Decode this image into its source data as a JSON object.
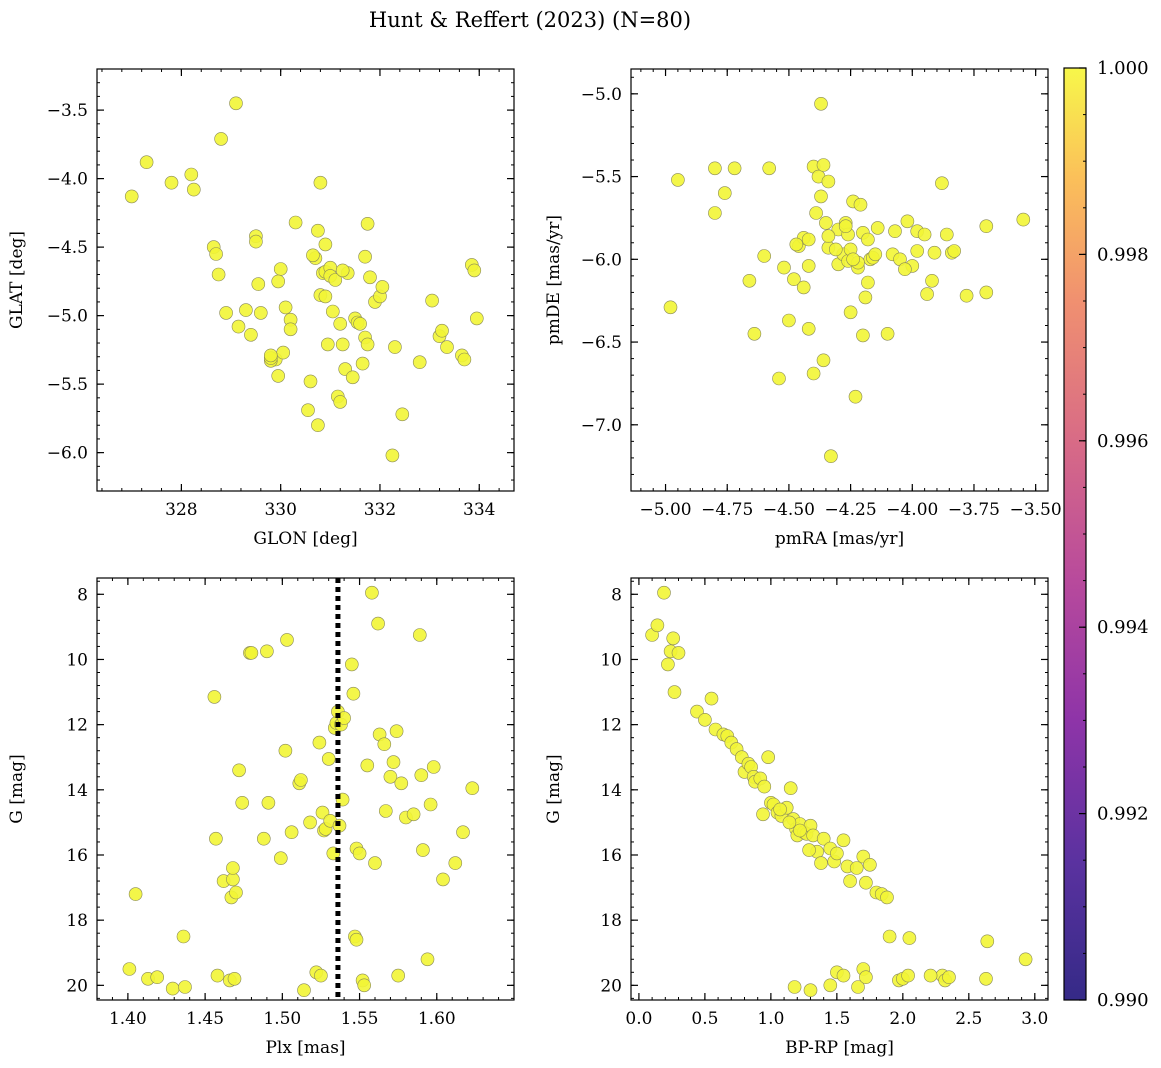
{
  "figure": {
    "title": "Hunt & Reffert (2023) (N=80)"
  },
  "colors": {
    "point_fill": "#f2f535",
    "point_edge": "#8a8a5a",
    "vline": "#000000"
  },
  "chart_data": [
    {
      "type": "scatter",
      "id": "glon-glat",
      "xlabel": "GLON [deg]",
      "ylabel": "GLAT [deg]",
      "xlim": [
        326.3,
        334.7
      ],
      "ylim": [
        -6.28,
        -3.2
      ],
      "y_inverted": false,
      "xticks": [
        328,
        330,
        332,
        334
      ],
      "xtick_labels": [
        "328",
        "330",
        "332",
        "334"
      ],
      "yticks": [
        -3.5,
        -4.0,
        -4.5,
        -5.0,
        -5.5,
        -6.0
      ],
      "ytick_labels": [
        "−3.5",
        "−4.0",
        "−4.5",
        "−5.0",
        "−5.5",
        "−6.0"
      ],
      "x": [
        327.0,
        327.3,
        327.8,
        328.2,
        328.25,
        329.1,
        328.8,
        328.65,
        328.7,
        328.75,
        328.9,
        329.15,
        329.3,
        329.4,
        329.5,
        329.6,
        329.55,
        329.5,
        329.9,
        329.95,
        330.0,
        329.95,
        330.05,
        330.1,
        330.2,
        330.2,
        330.3,
        329.8,
        329.8,
        329.8,
        330.55,
        330.6,
        330.7,
        330.75,
        330.8,
        330.8,
        330.85,
        330.9,
        330.9,
        330.95,
        331.0,
        331.05,
        331.0,
        331.1,
        331.15,
        331.2,
        331.25,
        331.2,
        331.3,
        331.35,
        331.45,
        331.5,
        331.55,
        331.6,
        331.65,
        331.7,
        331.7,
        331.75,
        331.75,
        331.8,
        331.9,
        332.0,
        332.05,
        332.25,
        332.3,
        332.45,
        332.8,
        333.05,
        333.2,
        333.25,
        333.35,
        333.65,
        333.7,
        333.85,
        333.9,
        333.95,
        330.9,
        331.25,
        330.75,
        330.65
      ],
      "y": [
        -4.13,
        -3.88,
        -4.03,
        -3.97,
        -4.08,
        -3.45,
        -3.71,
        -4.5,
        -4.55,
        -4.7,
        -4.98,
        -5.08,
        -4.96,
        -5.14,
        -4.42,
        -4.98,
        -4.77,
        -4.46,
        -5.32,
        -5.44,
        -4.66,
        -4.75,
        -5.27,
        -4.94,
        -5.03,
        -5.1,
        -4.32,
        -5.33,
        -5.31,
        -5.29,
        -5.69,
        -5.48,
        -4.58,
        -4.38,
        -4.03,
        -4.85,
        -4.69,
        -4.68,
        -4.86,
        -5.21,
        -4.65,
        -4.97,
        -4.71,
        -4.74,
        -5.59,
        -5.63,
        -5.21,
        -5.06,
        -5.39,
        -4.69,
        -5.45,
        -5.02,
        -5.05,
        -5.06,
        -5.35,
        -4.57,
        -5.16,
        -5.21,
        -4.33,
        -4.72,
        -4.9,
        -4.86,
        -4.79,
        -6.02,
        -5.23,
        -5.72,
        -5.34,
        -4.89,
        -5.15,
        -5.11,
        -5.23,
        -5.29,
        -5.32,
        -4.63,
        -4.67,
        -5.02,
        -4.48,
        -4.67,
        -5.8,
        -4.56
      ]
    },
    {
      "type": "scatter",
      "id": "pmra-pmde",
      "xlabel": "pmRA [mas/yr]",
      "ylabel": "pmDE [mas/yr]",
      "xlim": [
        -5.14,
        -3.45
      ],
      "ylim": [
        -7.4,
        -4.85
      ],
      "y_inverted": false,
      "xticks": [
        -5.0,
        -4.75,
        -4.5,
        -4.25,
        -4.0,
        -3.75,
        -3.5
      ],
      "xtick_labels": [
        "−5.00",
        "−4.75",
        "−4.50",
        "−4.25",
        "−4.00",
        "−3.75",
        "−3.50"
      ],
      "yticks": [
        -5.0,
        -5.5,
        -6.0,
        -6.5,
        -7.0
      ],
      "ytick_labels": [
        "−5.0",
        "−5.5",
        "−6.0",
        "−6.5",
        "−7.0"
      ],
      "x": [
        -4.98,
        -4.95,
        -4.8,
        -4.8,
        -4.76,
        -4.72,
        -4.64,
        -4.66,
        -4.58,
        -4.6,
        -4.54,
        -4.5,
        -4.48,
        -4.46,
        -4.44,
        -4.44,
        -4.42,
        -4.42,
        -4.4,
        -4.4,
        -4.38,
        -4.37,
        -4.36,
        -4.36,
        -4.35,
        -4.34,
        -4.34,
        -4.33,
        -4.3,
        -4.3,
        -4.28,
        -4.27,
        -4.26,
        -4.26,
        -4.25,
        -4.24,
        -4.23,
        -4.22,
        -4.2,
        -4.19,
        -4.2,
        -4.18,
        -4.17,
        -4.16,
        -4.15,
        -4.14,
        -4.1,
        -4.08,
        -4.07,
        -4.05,
        -4.02,
        -4.0,
        -3.98,
        -3.98,
        -3.95,
        -3.94,
        -3.92,
        -3.91,
        -3.88,
        -3.86,
        -3.84,
        -3.83,
        -3.78,
        -3.7,
        -3.7,
        -3.55,
        -4.39,
        -4.34,
        -4.47,
        -4.52,
        -4.27,
        -4.25,
        -4.22,
        -4.31,
        -4.18,
        -4.42,
        -4.37,
        -4.24,
        -4.21,
        -4.03
      ],
      "y": [
        -6.29,
        -5.52,
        -5.45,
        -5.72,
        -5.6,
        -5.45,
        -6.45,
        -6.13,
        -5.45,
        -5.98,
        -6.72,
        -6.37,
        -6.12,
        -5.92,
        -5.87,
        -6.17,
        -6.04,
        -6.42,
        -5.44,
        -6.69,
        -5.5,
        -5.06,
        -6.61,
        -5.43,
        -5.78,
        -5.53,
        -5.93,
        -7.19,
        -5.82,
        -6.03,
        -5.97,
        -5.78,
        -5.85,
        -6.01,
        -5.94,
        -5.65,
        -6.83,
        -6.05,
        -6.46,
        -6.23,
        -5.84,
        -5.88,
        -6.0,
        -5.99,
        -5.97,
        -5.81,
        -6.45,
        -5.97,
        -5.83,
        -6.0,
        -5.77,
        -6.04,
        -5.83,
        -5.95,
        -5.85,
        -6.21,
        -6.13,
        -5.96,
        -5.54,
        -5.85,
        -5.96,
        -5.95,
        -6.22,
        -6.2,
        -5.8,
        -5.76,
        -5.72,
        -5.86,
        -5.91,
        -6.05,
        -5.8,
        -6.32,
        -6.02,
        -5.94,
        -6.14,
        -5.88,
        -5.62,
        -6.0,
        -5.67,
        -6.06
      ]
    },
    {
      "type": "scatter",
      "id": "plx-g",
      "xlabel": "Plx [mas]",
      "ylabel": "G [mag]",
      "xlim": [
        1.38,
        1.65
      ],
      "ylim": [
        7.5,
        20.45
      ],
      "y_inverted": true,
      "vline": 1.536,
      "xticks": [
        1.4,
        1.45,
        1.5,
        1.55,
        1.6
      ],
      "xtick_labels": [
        "1.40",
        "1.45",
        "1.50",
        "1.55",
        "1.60"
      ],
      "yticks": [
        8,
        10,
        12,
        14,
        16,
        18,
        20
      ],
      "ytick_labels": [
        "8",
        "10",
        "12",
        "14",
        "16",
        "18",
        "20"
      ],
      "x": [
        1.401,
        1.405,
        1.413,
        1.419,
        1.429,
        1.436,
        1.437,
        1.456,
        1.457,
        1.458,
        1.462,
        1.466,
        1.467,
        1.468,
        1.468,
        1.469,
        1.47,
        1.472,
        1.474,
        1.479,
        1.48,
        1.488,
        1.49,
        1.491,
        1.499,
        1.502,
        1.503,
        1.506,
        1.511,
        1.512,
        1.514,
        1.518,
        1.522,
        1.524,
        1.525,
        1.526,
        1.527,
        1.528,
        1.53,
        1.531,
        1.533,
        1.534,
        1.535,
        1.536,
        1.537,
        1.538,
        1.539,
        1.54,
        1.545,
        1.546,
        1.547,
        1.548,
        1.548,
        1.55,
        1.552,
        1.553,
        1.555,
        1.558,
        1.56,
        1.562,
        1.563,
        1.566,
        1.567,
        1.57,
        1.572,
        1.574,
        1.575,
        1.577,
        1.58,
        1.585,
        1.589,
        1.59,
        1.591,
        1.594,
        1.596,
        1.598,
        1.604,
        1.612,
        1.617,
        1.623
      ],
      "y": [
        19.5,
        17.2,
        19.8,
        19.75,
        20.1,
        18.5,
        20.05,
        11.15,
        15.5,
        19.7,
        16.8,
        19.85,
        17.3,
        16.75,
        16.4,
        19.8,
        17.15,
        13.4,
        14.4,
        9.8,
        9.8,
        15.5,
        9.75,
        14.4,
        16.1,
        12.8,
        9.4,
        15.3,
        13.8,
        13.7,
        20.15,
        15.0,
        19.6,
        12.55,
        19.7,
        14.7,
        15.25,
        15.2,
        13.05,
        14.95,
        15.95,
        12.1,
        11.95,
        11.6,
        15.1,
        12.0,
        14.3,
        11.8,
        10.15,
        11.05,
        18.5,
        18.6,
        15.8,
        15.95,
        19.85,
        20.0,
        13.25,
        7.95,
        16.25,
        8.9,
        12.3,
        12.6,
        14.65,
        13.6,
        13.15,
        12.2,
        19.7,
        13.8,
        14.85,
        14.75,
        9.25,
        13.55,
        15.85,
        19.2,
        14.45,
        13.3,
        16.75,
        16.25,
        15.3,
        13.95
      ]
    },
    {
      "type": "scatter",
      "id": "bprp-g",
      "xlabel": "BP-RP [mag]",
      "ylabel": "G [mag]",
      "xlim": [
        -0.06,
        3.1
      ],
      "ylim": [
        7.5,
        20.45
      ],
      "y_inverted": true,
      "xticks": [
        0.0,
        0.5,
        1.0,
        1.5,
        2.0,
        2.5,
        3.0
      ],
      "xtick_labels": [
        "0.0",
        "0.5",
        "1.0",
        "1.5",
        "2.0",
        "2.5",
        "3.0"
      ],
      "yticks": [
        8,
        10,
        12,
        14,
        16,
        18,
        20
      ],
      "ytick_labels": [
        "8",
        "10",
        "12",
        "14",
        "16",
        "18",
        "20"
      ],
      "x": [
        0.1,
        0.14,
        0.19,
        0.22,
        0.24,
        0.26,
        0.3,
        0.27,
        0.44,
        0.5,
        0.55,
        0.58,
        0.64,
        0.67,
        0.7,
        0.74,
        0.78,
        0.8,
        0.83,
        0.85,
        0.87,
        0.88,
        0.92,
        0.95,
        0.98,
        1.0,
        1.02,
        1.05,
        1.08,
        1.12,
        1.15,
        1.17,
        1.19,
        1.2,
        1.22,
        1.25,
        1.27,
        1.3,
        1.32,
        1.35,
        1.4,
        1.45,
        1.48,
        1.5,
        1.55,
        1.58,
        1.6,
        1.65,
        1.7,
        1.72,
        1.75,
        1.8,
        1.84,
        1.88,
        1.9,
        2.05,
        2.3,
        2.32,
        2.64,
        2.93,
        1.18,
        1.3,
        1.45,
        1.5,
        1.55,
        1.66,
        1.7,
        1.72,
        1.97,
        2.0,
        2.04,
        2.21,
        2.35,
        2.63,
        0.94,
        1.07,
        1.14,
        1.22,
        1.29,
        1.38
      ],
      "y": [
        9.25,
        8.95,
        7.95,
        10.15,
        9.75,
        9.35,
        9.8,
        11.0,
        11.6,
        11.85,
        11.2,
        12.15,
        12.3,
        12.35,
        12.55,
        12.75,
        13.0,
        13.45,
        13.2,
        13.3,
        13.6,
        13.75,
        13.65,
        13.9,
        13.0,
        14.4,
        14.45,
        14.7,
        14.8,
        14.55,
        13.95,
        14.9,
        15.2,
        15.4,
        15.05,
        15.3,
        15.35,
        15.1,
        15.4,
        15.9,
        15.5,
        15.8,
        16.2,
        15.95,
        15.55,
        16.35,
        16.8,
        16.4,
        16.05,
        16.85,
        16.3,
        17.15,
        17.2,
        17.3,
        18.5,
        18.55,
        19.7,
        19.85,
        18.65,
        19.2,
        20.05,
        20.15,
        20.0,
        19.6,
        19.7,
        20.05,
        19.5,
        19.75,
        19.85,
        19.8,
        19.7,
        19.7,
        19.75,
        19.8,
        14.75,
        14.6,
        15.0,
        15.25,
        15.85,
        16.25
      ]
    }
  ],
  "colorbar": {
    "min": 0.99,
    "max": 1.0,
    "colormap": "plasma",
    "ticks": [
      0.99,
      0.992,
      0.994,
      0.996,
      0.998,
      1.0
    ],
    "tick_labels": [
      "0.990",
      "0.992",
      "0.994",
      "0.996",
      "0.998",
      "1.000"
    ]
  }
}
